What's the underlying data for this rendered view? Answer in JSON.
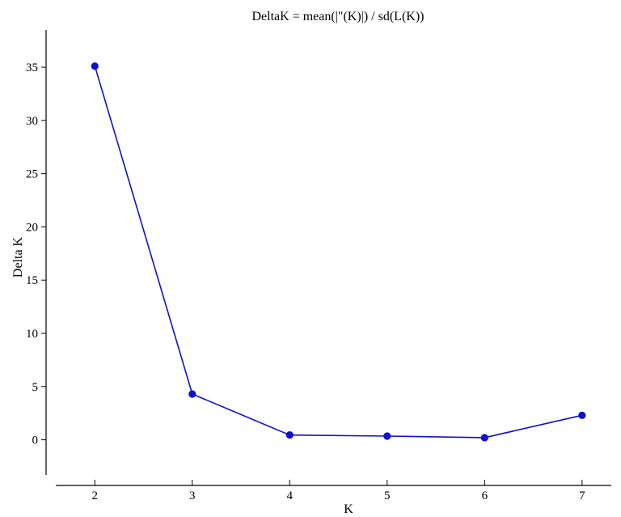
{
  "chart_data": {
    "type": "line",
    "title": "DeltaK = mean(|\"(K)|) / sd(L(K))",
    "xlabel": "K",
    "ylabel": "Delta K",
    "x": [
      2,
      3,
      4,
      5,
      6,
      7
    ],
    "series": [
      {
        "values": [
          35.1,
          4.3,
          0.45,
          0.35,
          0.2,
          2.3
        ],
        "color": "#1010d0"
      }
    ],
    "xticks": [
      2,
      3,
      4,
      5,
      6,
      7
    ],
    "yticks": [
      0,
      5,
      10,
      15,
      20,
      25,
      30,
      35
    ],
    "xlim": [
      1.5,
      7.3
    ],
    "ylim": [
      -3.3,
      38.5
    ],
    "grid": false,
    "legend": "none"
  }
}
